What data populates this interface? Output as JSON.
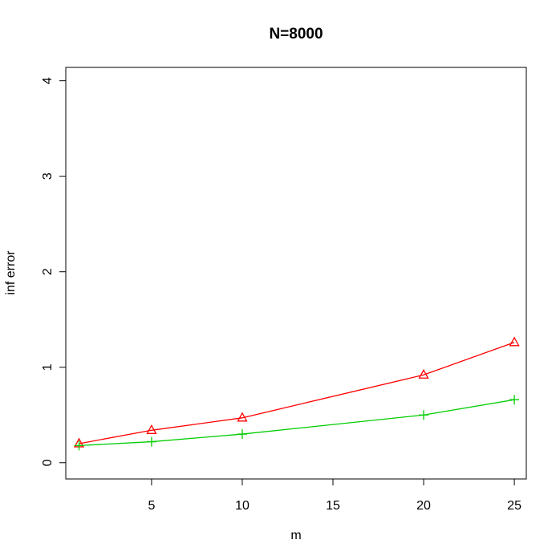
{
  "chart_data": {
    "type": "line",
    "title": "N=8000",
    "x_label": "m",
    "y_label": "inf error",
    "x": [
      1,
      5,
      10,
      20,
      25
    ],
    "series": [
      {
        "color": "#ff0000",
        "marker": "triangle",
        "values": [
          0.2,
          0.34,
          0.47,
          0.92,
          1.26
        ]
      },
      {
        "color": "#00cd00",
        "marker": "plus",
        "values": [
          0.18,
          0.22,
          0.3,
          0.5,
          0.66
        ]
      }
    ],
    "xlim": [
      0.27,
      25.66
    ],
    "xticks": [
      5,
      10,
      15,
      20,
      25
    ],
    "ylim": [
      -0.17,
      4.14
    ],
    "yticks": [
      0,
      1,
      2,
      3,
      4
    ]
  }
}
